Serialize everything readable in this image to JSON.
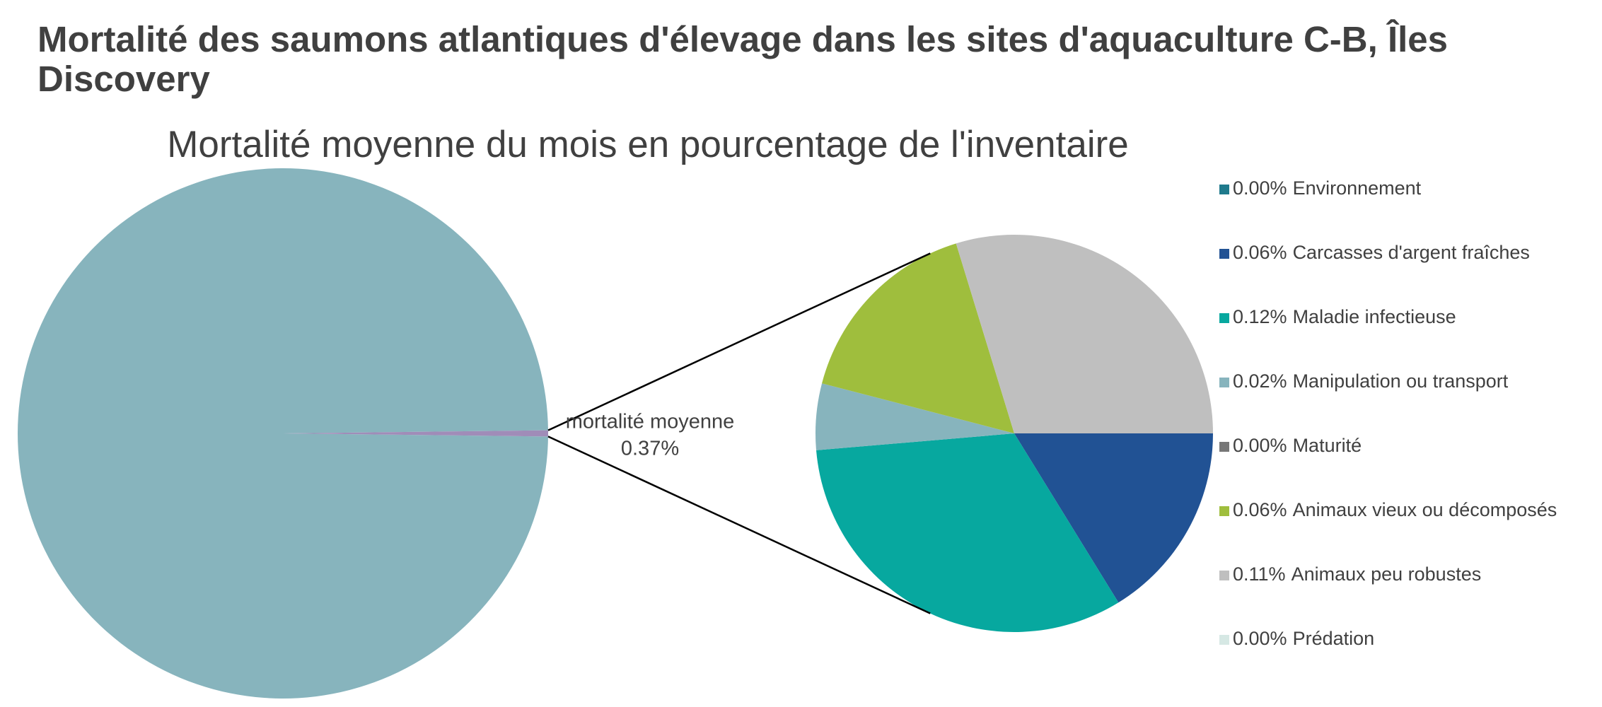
{
  "chart_data": {
    "type": "pie-of-pie",
    "title": "Mortalité des saumons atlantiques d'élevage dans les sites d'aquaculture C-B, Îles Discovery",
    "subtitle": "Mortalité moyenne du mois en pourcentage de l'inventaire",
    "main": {
      "categories": [
        null,
        "mortalité moyenne"
      ],
      "values": [
        99.63,
        0.37
      ],
      "value_labels": [
        null,
        "0.37%"
      ],
      "colors": [
        "#87b4bd",
        "#a08cb8"
      ]
    },
    "categories": [
      "Environnement",
      "Carcasses d'argent fraîches",
      "Maladie infectieuse",
      "Manipulation ou transport",
      "Maturité",
      "Animaux vieux ou décomposés",
      "Animaux peu robustes",
      "Prédation"
    ],
    "values": [
      0.0,
      0.06,
      0.12,
      0.02,
      0.0,
      0.06,
      0.11,
      0.0
    ],
    "value_labels": [
      "0.00%",
      "0.06%",
      "0.12%",
      "0.02%",
      "0.00%",
      "0.06%",
      "0.11%",
      "0.00%"
    ],
    "colors": [
      "#1f7a8c",
      "#215294",
      "#07a89f",
      "#87b4bd",
      "#777777",
      "#9fbe3d",
      "#bfbfbf",
      "#d6e8e4"
    ]
  }
}
